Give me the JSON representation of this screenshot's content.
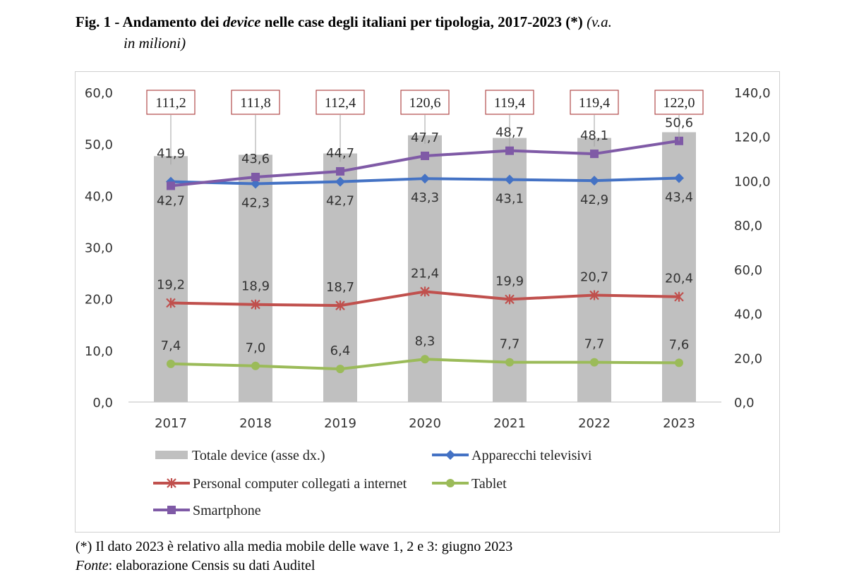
{
  "caption": {
    "prefix": "Fig. 1 - Andamento dei ",
    "emph": "device",
    "rest": " nelle case degli italiani per tipologia, 2017-2023 (*)",
    "unit_line1": "(v.a.",
    "unit_line2": "in milioni)"
  },
  "footnote": {
    "note": "(*) Il dato 2023 è relativo alla media mobile delle wave 1, 2 e 3: giugno 2023",
    "source_label": "Fonte",
    "source_text": ": elaborazione Censis su dati Auditel"
  },
  "colors": {
    "total_bar": "#c0c0c0",
    "tv": "#4472c4",
    "pc": "#c0504d",
    "tablet": "#9bbb59",
    "smartphone": "#7f5aa6",
    "callout_border": "#b04a4a"
  },
  "chart_data": {
    "type": "bar+line",
    "categories": [
      "2017",
      "2018",
      "2019",
      "2020",
      "2021",
      "2022",
      "2023"
    ],
    "y_left": {
      "min": 0,
      "max": 60,
      "step": 10,
      "ticks": [
        "0,0",
        "10,0",
        "20,0",
        "30,0",
        "40,0",
        "50,0",
        "60,0"
      ]
    },
    "y_right": {
      "min": 0,
      "max": 140,
      "step": 20,
      "ticks": [
        "0,0",
        "20,0",
        "40,0",
        "60,0",
        "80,0",
        "100,0",
        "120,0",
        "140,0"
      ]
    },
    "bars": {
      "name": "Totale device (asse dx.)",
      "axis": "right",
      "values": [
        111.2,
        111.8,
        112.4,
        120.6,
        119.4,
        119.4,
        122.0
      ],
      "labels": [
        "111,2",
        "111,8",
        "112,4",
        "120,6",
        "119,4",
        "119,4",
        "122,0"
      ]
    },
    "series": [
      {
        "key": "tv",
        "name": "Apparecchi televisivi",
        "marker": "diamond",
        "values": [
          42.7,
          42.3,
          42.7,
          43.3,
          43.1,
          42.9,
          43.4
        ],
        "labels": [
          "42,7",
          "42,3",
          "42,7",
          "43,3",
          "43,1",
          "42,9",
          "43,4"
        ]
      },
      {
        "key": "pc",
        "name": "Personal computer collegati a internet",
        "marker": "star",
        "values": [
          19.2,
          18.9,
          18.7,
          21.4,
          19.9,
          20.7,
          20.4
        ],
        "labels": [
          "19,2",
          "18,9",
          "18,7",
          "21,4",
          "19,9",
          "20,7",
          "20,4"
        ]
      },
      {
        "key": "tablet",
        "name": "Tablet",
        "marker": "circle",
        "values": [
          7.4,
          7.0,
          6.4,
          8.3,
          7.7,
          7.7,
          7.6
        ],
        "labels": [
          "7,4",
          "7,0",
          "6,4",
          "8,3",
          "7,7",
          "7,7",
          "7,6"
        ]
      },
      {
        "key": "smartphone",
        "name": "Smartphone",
        "marker": "square",
        "values": [
          41.9,
          43.6,
          44.7,
          47.7,
          48.7,
          48.1,
          50.6
        ],
        "labels": [
          "41,9",
          "43,6",
          "44,7",
          "47,7",
          "48,7",
          "48,1",
          "50,6"
        ]
      }
    ],
    "legend_position": "bottom"
  }
}
